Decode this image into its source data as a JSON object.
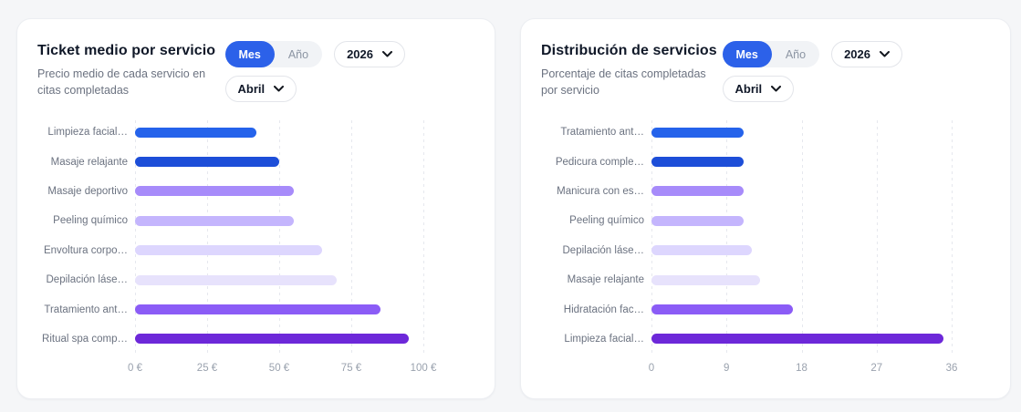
{
  "cards": [
    {
      "title": "Ticket medio por servicio",
      "subtitle": "Precio medio de cada servicio en citas completadas",
      "controls": {
        "period_selected": "Mes",
        "period_other": "Año",
        "year": "2026",
        "month": "Abril"
      }
    },
    {
      "title": "Distribución de servicios",
      "subtitle": "Porcentaje de citas completadas por servicio",
      "controls": {
        "period_selected": "Mes",
        "period_other": "Año",
        "year": "2026",
        "month": "Abril"
      }
    }
  ],
  "chart_data": [
    {
      "type": "bar",
      "orientation": "horizontal",
      "title": "Ticket medio por servicio",
      "categories": [
        "Limpieza facial…",
        "Masaje relajante",
        "Masaje deportivo",
        "Peeling químico",
        "Envoltura corpo…",
        "Depilación láse…",
        "Tratamiento ant…",
        "Ritual spa comp…"
      ],
      "values": [
        42,
        50,
        55,
        55,
        65,
        70,
        85,
        95
      ],
      "unit": "€",
      "xlim": [
        0,
        100
      ],
      "x_ticks": [
        0,
        25,
        50,
        75,
        100
      ],
      "x_tick_labels": [
        "0 €",
        "25 €",
        "50 €",
        "75 €",
        "100 €"
      ],
      "bar_colors": [
        "#2563eb",
        "#1d4ed8",
        "#a78bfa",
        "#c4b5fd",
        "#ddd6fe",
        "#e7e2fc",
        "#8b5cf6",
        "#6d28d9"
      ],
      "grid": "vertical-dashed",
      "legend": "none"
    },
    {
      "type": "bar",
      "orientation": "horizontal",
      "title": "Distribución de servicios",
      "categories": [
        "Tratamiento ant…",
        "Pedicura comple…",
        "Manicura con es…",
        "Peeling químico",
        "Depilación láse…",
        "Masaje relajante",
        "Hidratación fac…",
        "Limpieza facial…"
      ],
      "values": [
        11,
        11,
        11,
        11,
        12,
        13,
        17,
        35
      ],
      "unit": "%",
      "xlim": [
        0,
        36
      ],
      "x_ticks": [
        0,
        9,
        18,
        27,
        36
      ],
      "x_tick_labels": [
        "0",
        "9",
        "18",
        "27",
        "36"
      ],
      "bar_colors": [
        "#2563eb",
        "#1d4ed8",
        "#a78bfa",
        "#c4b5fd",
        "#ddd6fe",
        "#e7e2fc",
        "#8b5cf6",
        "#6d28d9"
      ],
      "grid": "vertical-dashed",
      "legend": "none"
    }
  ],
  "colors": {
    "accent_blue": "#2c61e9",
    "page_background": "#f5f6f8",
    "card_background": "#ffffff",
    "title_text": "#101828",
    "muted_text": "#6b7280",
    "tick_text": "#9aa2ae"
  }
}
